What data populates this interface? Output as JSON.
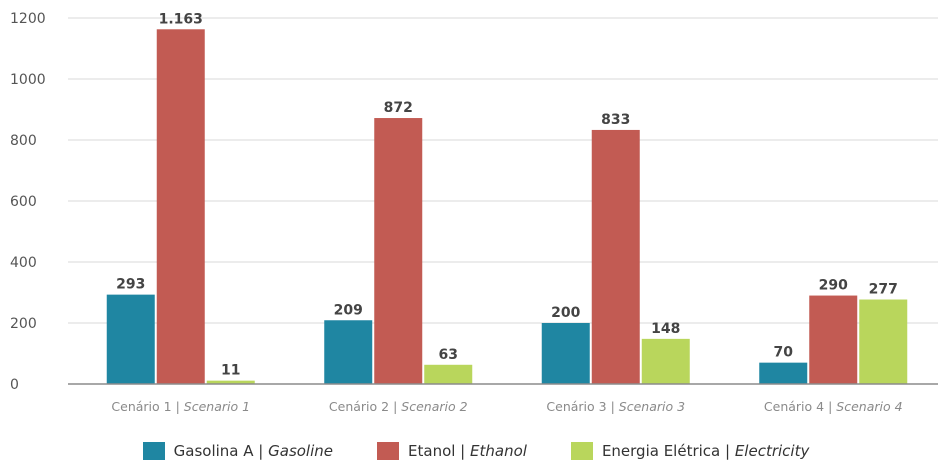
{
  "chart_data": {
    "type": "bar",
    "categories": [
      {
        "main": "Cenário 1 | ",
        "italic": "Scenario 1"
      },
      {
        "main": "Cenário 2 | ",
        "italic": "Scenario 2"
      },
      {
        "main": "Cenário 3 | ",
        "italic": "Scenario 3"
      },
      {
        "main": "Cenário 4 | ",
        "italic": "Scenario 4"
      }
    ],
    "series": [
      {
        "name": "Gasolina A | ",
        "name_italic": "Gasoline",
        "color": "#1f86a2",
        "values": [
          293,
          209,
          200,
          70
        ],
        "labels": [
          "293",
          "209",
          "200",
          "70"
        ]
      },
      {
        "name": "Etanol | ",
        "name_italic": "Ethanol",
        "color": "#c25b53",
        "values": [
          1163,
          872,
          833,
          290
        ],
        "labels": [
          "1.163",
          "872",
          "833",
          "290"
        ]
      },
      {
        "name": "Energia Elétrica | ",
        "name_italic": "Electricity",
        "color": "#b9d65c",
        "values": [
          11,
          63,
          148,
          277
        ],
        "labels": [
          "11",
          "63",
          "148",
          "277"
        ]
      }
    ],
    "ylim": [
      0,
      1200
    ],
    "yticks": [
      0,
      200,
      400,
      600,
      800,
      1000,
      1200
    ],
    "grid": true,
    "legend_position": "bottom",
    "title": "",
    "xlabel": "",
    "ylabel": ""
  }
}
